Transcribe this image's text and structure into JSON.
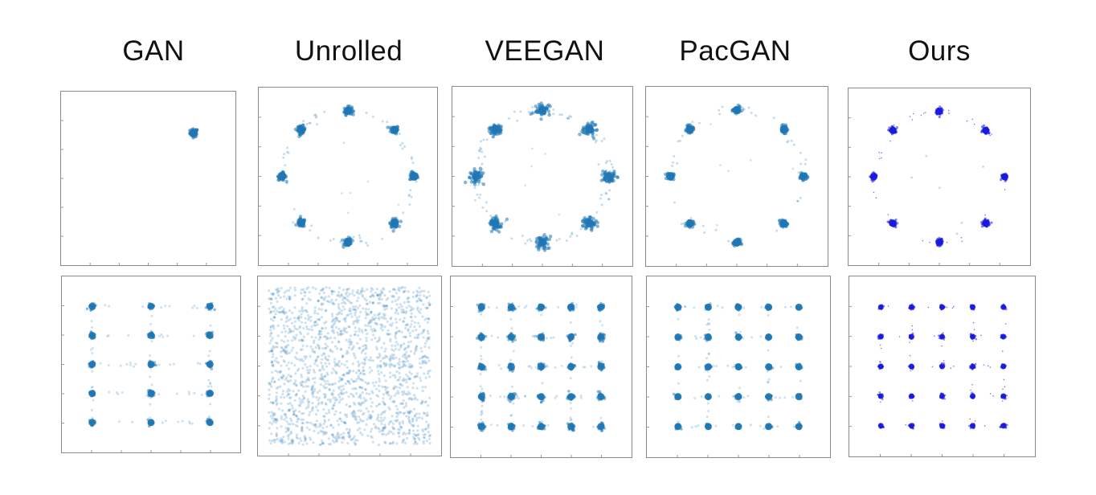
{
  "titles": [
    "GAN",
    "Unrolled",
    "VEEGAN",
    "PacGAN",
    "Ours"
  ],
  "colors": {
    "default": "#1f77b4",
    "ours": "#1a1adf",
    "frame": "#8a8a8a"
  },
  "chart_data": [
    {
      "type": "scatter",
      "title": "GAN",
      "dataset": "ring",
      "modes": [
        [
          0.71,
          0.71
        ]
      ],
      "spread": 0.03,
      "noise": 0.0
    },
    {
      "type": "scatter",
      "title": "Unrolled",
      "dataset": "ring",
      "modes": [
        [
          1,
          0
        ],
        [
          0.71,
          0.71
        ],
        [
          0,
          1
        ],
        [
          -0.71,
          0.71
        ],
        [
          -1,
          0
        ],
        [
          -0.71,
          -0.71
        ],
        [
          0,
          -1
        ],
        [
          0.71,
          -0.71
        ]
      ],
      "spread": 0.03,
      "noise": 0.15
    },
    {
      "type": "scatter",
      "title": "VEEGAN",
      "dataset": "ring",
      "modes": [
        [
          1,
          0
        ],
        [
          0.71,
          0.71
        ],
        [
          0,
          1
        ],
        [
          -0.71,
          0.71
        ],
        [
          -1,
          0
        ],
        [
          -0.71,
          -0.71
        ],
        [
          0,
          -1
        ],
        [
          0.71,
          -0.71
        ]
      ],
      "spread": 0.05,
      "noise": 0.25
    },
    {
      "type": "scatter",
      "title": "PacGAN",
      "dataset": "ring",
      "modes": [
        [
          1,
          0
        ],
        [
          0.71,
          0.71
        ],
        [
          0,
          1
        ],
        [
          -0.71,
          0.71
        ],
        [
          -1,
          0
        ],
        [
          -0.71,
          -0.71
        ],
        [
          0,
          -1
        ],
        [
          0.71,
          -0.71
        ]
      ],
      "spread": 0.025,
      "noise": 0.1
    },
    {
      "type": "scatter",
      "title": "Ours",
      "dataset": "ring",
      "modes": [
        [
          1,
          0
        ],
        [
          0.71,
          0.71
        ],
        [
          0,
          1
        ],
        [
          -0.71,
          0.71
        ],
        [
          -1,
          0
        ],
        [
          -0.71,
          -0.71
        ],
        [
          0,
          -1
        ],
        [
          0.71,
          -0.71
        ]
      ],
      "spread": 0.025,
      "noise": 0.05
    },
    {
      "type": "scatter",
      "title": "GAN",
      "dataset": "grid",
      "grid_x": [
        -2,
        0,
        2
      ],
      "grid_y": [
        -2,
        -1,
        0,
        1,
        2
      ],
      "spread": 0.05,
      "noise": 0.15
    },
    {
      "type": "scatter",
      "title": "Unrolled",
      "dataset": "grid",
      "grid_x": [],
      "grid_y": [],
      "spread": 0.0,
      "noise": 1.0
    },
    {
      "type": "scatter",
      "title": "VEEGAN",
      "dataset": "grid",
      "grid_x": [
        -2,
        -1,
        0,
        1,
        2
      ],
      "grid_y": [
        -2,
        -1,
        0,
        1,
        2
      ],
      "spread": 0.06,
      "noise": 0.2
    },
    {
      "type": "scatter",
      "title": "PacGAN",
      "dataset": "grid",
      "grid_x": [
        -2,
        -1,
        0,
        1,
        2
      ],
      "grid_y": [
        -2,
        -1,
        0,
        1,
        2
      ],
      "spread": 0.04,
      "noise": 0.15
    },
    {
      "type": "scatter",
      "title": "Ours",
      "dataset": "grid",
      "grid_x": [
        -2,
        -1,
        0,
        1,
        2
      ],
      "grid_y": [
        -2,
        -1,
        0,
        1,
        2
      ],
      "spread": 0.04,
      "noise": 0.05
    }
  ]
}
